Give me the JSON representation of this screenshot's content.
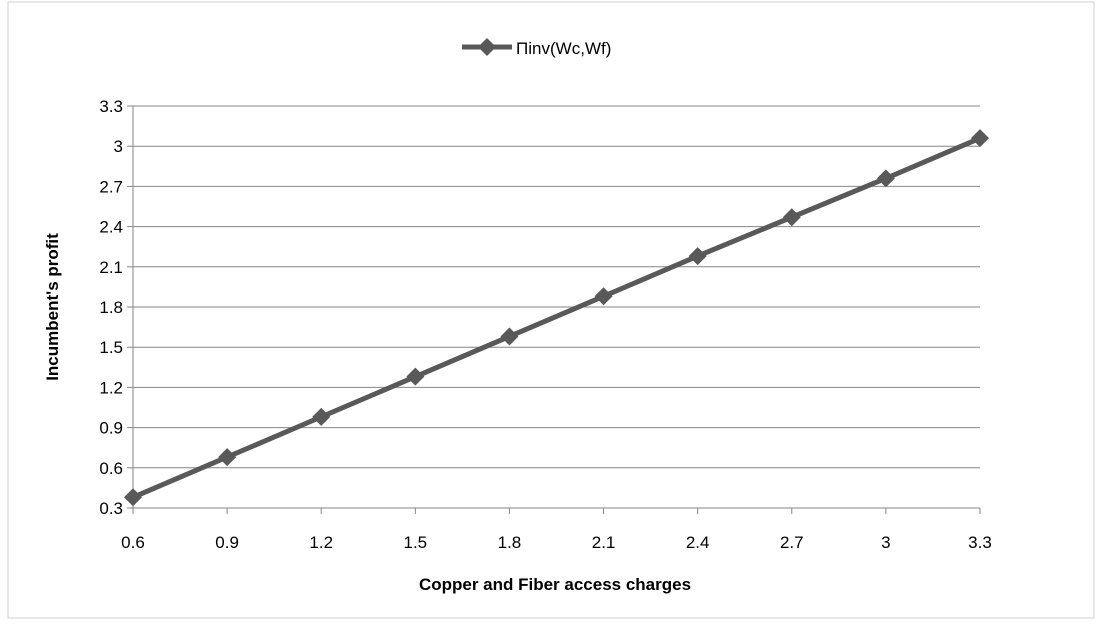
{
  "chart_data": {
    "type": "line",
    "title": "",
    "xlabel": "Copper and Fiber access charges",
    "ylabel": "Incumbent's profit",
    "x": [
      0.6,
      0.9,
      1.2,
      1.5,
      1.8,
      2.1,
      2.4,
      2.7,
      3.0,
      3.3
    ],
    "x_tick_labels": [
      "0.6",
      "0.9",
      "1.2",
      "1.5",
      "1.8",
      "2.1",
      "2.4",
      "2.7",
      "3",
      "3.3"
    ],
    "y_ticks": [
      0.3,
      0.6,
      0.9,
      1.2,
      1.5,
      1.8,
      2.1,
      2.4,
      2.7,
      3.0,
      3.3
    ],
    "y_tick_labels": [
      "0.3",
      "0.6",
      "0.9",
      "1.2",
      "1.5",
      "1.8",
      "2.1",
      "2.4",
      "2.7",
      "3",
      "3.3"
    ],
    "ylim": [
      0.3,
      3.3
    ],
    "xlim": [
      0.6,
      3.3
    ],
    "grid": "horizontal",
    "legend_position": "top-center",
    "series": [
      {
        "name": "Πinv(Wc,Wf)",
        "values": [
          0.38,
          0.68,
          0.98,
          1.28,
          1.58,
          1.88,
          2.18,
          2.47,
          2.76,
          3.06
        ],
        "color": "#595959",
        "marker": "diamond"
      }
    ]
  }
}
